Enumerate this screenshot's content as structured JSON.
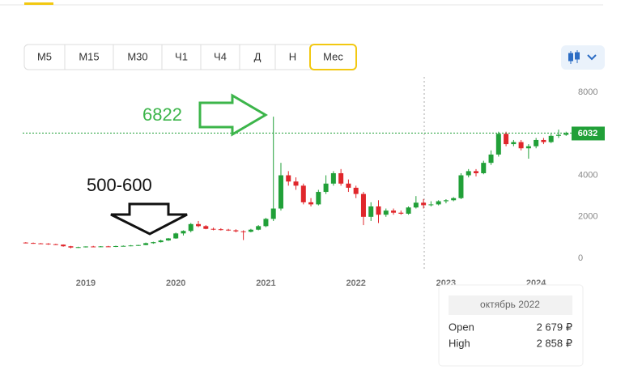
{
  "toolbar": {
    "buttons": [
      "М5",
      "М15",
      "М30",
      "Ч1",
      "Ч4",
      "Д",
      "Н",
      "Мес"
    ],
    "selected_index": 7
  },
  "annotations": [
    "6822",
    "500-600"
  ],
  "tooltip": {
    "title": "октябрь 2022",
    "rows": [
      {
        "label": "Open",
        "value": "2 679 ₽"
      },
      {
        "label": "High",
        "value": "2 858 ₽"
      }
    ]
  },
  "chart_data": {
    "type": "candlestick",
    "categories": [
      null,
      null,
      null,
      null,
      null,
      null,
      null,
      null,
      "2019",
      null,
      null,
      null,
      null,
      null,
      null,
      null,
      null,
      null,
      null,
      null,
      "2020",
      null,
      null,
      null,
      null,
      null,
      null,
      null,
      null,
      null,
      null,
      null,
      "2021",
      null,
      null,
      null,
      null,
      null,
      null,
      null,
      null,
      null,
      null,
      null,
      "2022",
      null,
      null,
      null,
      null,
      null,
      null,
      null,
      null,
      null,
      null,
      null,
      "2023",
      null,
      null,
      null,
      null,
      null,
      null,
      null,
      null,
      null,
      null,
      null,
      "2024",
      null,
      null,
      null,
      null
    ],
    "open": [
      760,
      740,
      720,
      710,
      680,
      660,
      580,
      520,
      540,
      570,
      560,
      575,
      570,
      590,
      600,
      620,
      640,
      730,
      780,
      860,
      960,
      1200,
      1320,
      1650,
      1550,
      1420,
      1400,
      1380,
      1350,
      1300,
      1280,
      1380,
      1550,
      1900,
      2400,
      4000,
      3700,
      3500,
      2700,
      2600,
      3200,
      3600,
      4100,
      3600,
      3400,
      3100,
      2000,
      2500,
      2100,
      2300,
      2200,
      2150,
      2450,
      2679,
      2560,
      2600,
      2750,
      2800,
      2900,
      4000,
      4200,
      4100,
      4600,
      5000,
      6000,
      5500,
      5600,
      5300,
      5400,
      5700,
      5600,
      5900,
      5950
    ],
    "high": [
      780,
      760,
      740,
      730,
      700,
      670,
      600,
      560,
      580,
      600,
      590,
      600,
      610,
      620,
      640,
      650,
      760,
      800,
      900,
      980,
      1240,
      1350,
      1700,
      1800,
      1600,
      1480,
      1450,
      1420,
      1400,
      1350,
      1420,
      1600,
      1950,
      6822,
      4600,
      4200,
      3900,
      3600,
      2900,
      3300,
      4000,
      4200,
      4300,
      3800,
      3500,
      3200,
      2700,
      2800,
      2400,
      2400,
      2300,
      2500,
      3000,
      2858,
      2750,
      2800,
      2850,
      2950,
      4100,
      4300,
      4300,
      4700,
      5200,
      6100,
      6100,
      5700,
      5700,
      5500,
      5800,
      5800,
      6000,
      6200,
      6100
    ],
    "low": [
      720,
      700,
      690,
      650,
      640,
      560,
      480,
      500,
      520,
      540,
      540,
      550,
      540,
      570,
      580,
      590,
      630,
      700,
      760,
      840,
      940,
      1100,
      1250,
      1500,
      1400,
      1350,
      1340,
      1320,
      1250,
      880,
      1250,
      1350,
      1500,
      1800,
      2300,
      3500,
      3300,
      2600,
      2500,
      2550,
      3100,
      3500,
      3500,
      3200,
      2900,
      1600,
      1800,
      1700,
      2000,
      2100,
      2100,
      2100,
      2400,
      2400,
      2500,
      2550,
      2650,
      2750,
      2850,
      3900,
      3950,
      4050,
      4500,
      4900,
      5400,
      5400,
      5200,
      4800,
      5300,
      5500,
      5550,
      5800,
      5900
    ],
    "close": [
      740,
      720,
      710,
      680,
      660,
      580,
      520,
      540,
      570,
      560,
      575,
      570,
      590,
      600,
      620,
      640,
      730,
      780,
      860,
      960,
      1200,
      1320,
      1650,
      1550,
      1420,
      1400,
      1380,
      1350,
      1300,
      1280,
      1380,
      1550,
      1900,
      2400,
      4000,
      3700,
      3500,
      2700,
      2600,
      3200,
      3600,
      4100,
      3600,
      3400,
      3100,
      2000,
      2500,
      2100,
      2300,
      2200,
      2150,
      2450,
      2680,
      2560,
      2600,
      2750,
      2800,
      2900,
      4000,
      4200,
      4100,
      4600,
      5000,
      6000,
      5500,
      5600,
      5300,
      5400,
      5700,
      5600,
      5900,
      5950,
      6032
    ],
    "up_color": "#21a038",
    "down_color": "#e0262b",
    "ylim": [
      -620,
      8740
    ],
    "yticks": [
      0,
      2000,
      4000,
      8000
    ],
    "last_price": 6032,
    "last_price_color": "#21a038"
  }
}
